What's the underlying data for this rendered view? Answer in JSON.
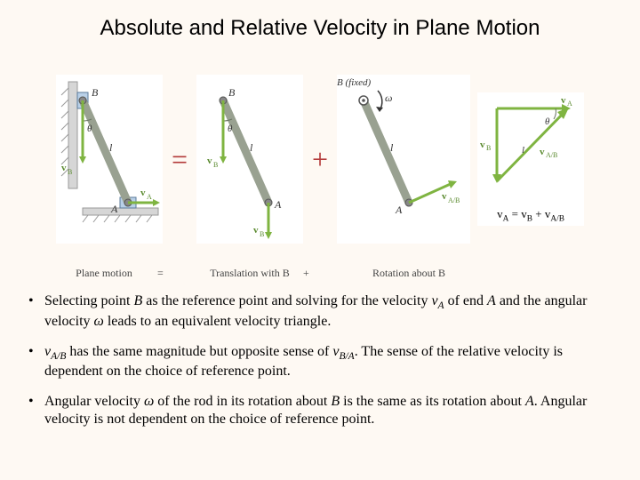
{
  "title": "Absolute and Relative Velocity in Plane Motion",
  "figure": {
    "panel1_caption": "Plane motion",
    "panel2_caption": "Translation with B",
    "panel3_caption": "Rotation about B",
    "eq_op": "=",
    "plus_op": "+",
    "labels": {
      "A": "A",
      "B": "B",
      "l": "l",
      "theta": "θ",
      "vA": "vA",
      "vB": "vB",
      "vAB": "vA/B",
      "omega": "ω",
      "Bfixed": "B (fixed)"
    },
    "colors": {
      "rod": "#a8b0a0",
      "rod_stroke": "#6d7866",
      "vec": "#7fb441",
      "vec_dark": "#5a8a2e",
      "wall": "#c9c9c9",
      "pivot": "#888",
      "omega": "#333",
      "angle_arc": "#6d7866",
      "text": "#333"
    },
    "triangle_eq": "vA = vB + vA/B"
  },
  "bullets": [
    {
      "parts": [
        {
          "t": "Selecting point "
        },
        {
          "t": "B",
          "i": true
        },
        {
          "t": " as the reference point and solving for the velocity "
        },
        {
          "t": "v",
          "i": true
        },
        {
          "t": "A",
          "sub": true,
          "i": true
        },
        {
          "t": " of end "
        },
        {
          "t": "A",
          "i": true
        },
        {
          "t": " and the angular velocity "
        },
        {
          "t": "ω",
          "i": true
        },
        {
          "t": " leads to an equivalent velocity triangle."
        }
      ]
    },
    {
      "parts": [
        {
          "t": "v",
          "i": true
        },
        {
          "t": "A/B",
          "sub": true,
          "i": true
        },
        {
          "t": " has the same magnitude but opposite sense of "
        },
        {
          "t": "v",
          "i": true
        },
        {
          "t": "B/A",
          "sub": true,
          "i": true
        },
        {
          "t": ".  The sense of the relative velocity is dependent on the choice of reference point."
        }
      ]
    },
    {
      "parts": [
        {
          "t": "Angular velocity "
        },
        {
          "t": "ω",
          "i": true
        },
        {
          "t": " of the rod in its rotation about "
        },
        {
          "t": "B",
          "i": true
        },
        {
          "t": " is the same as its rotation about "
        },
        {
          "t": "A",
          "i": true
        },
        {
          "t": ".  Angular velocity is not dependent on the choice of reference point."
        }
      ]
    }
  ]
}
